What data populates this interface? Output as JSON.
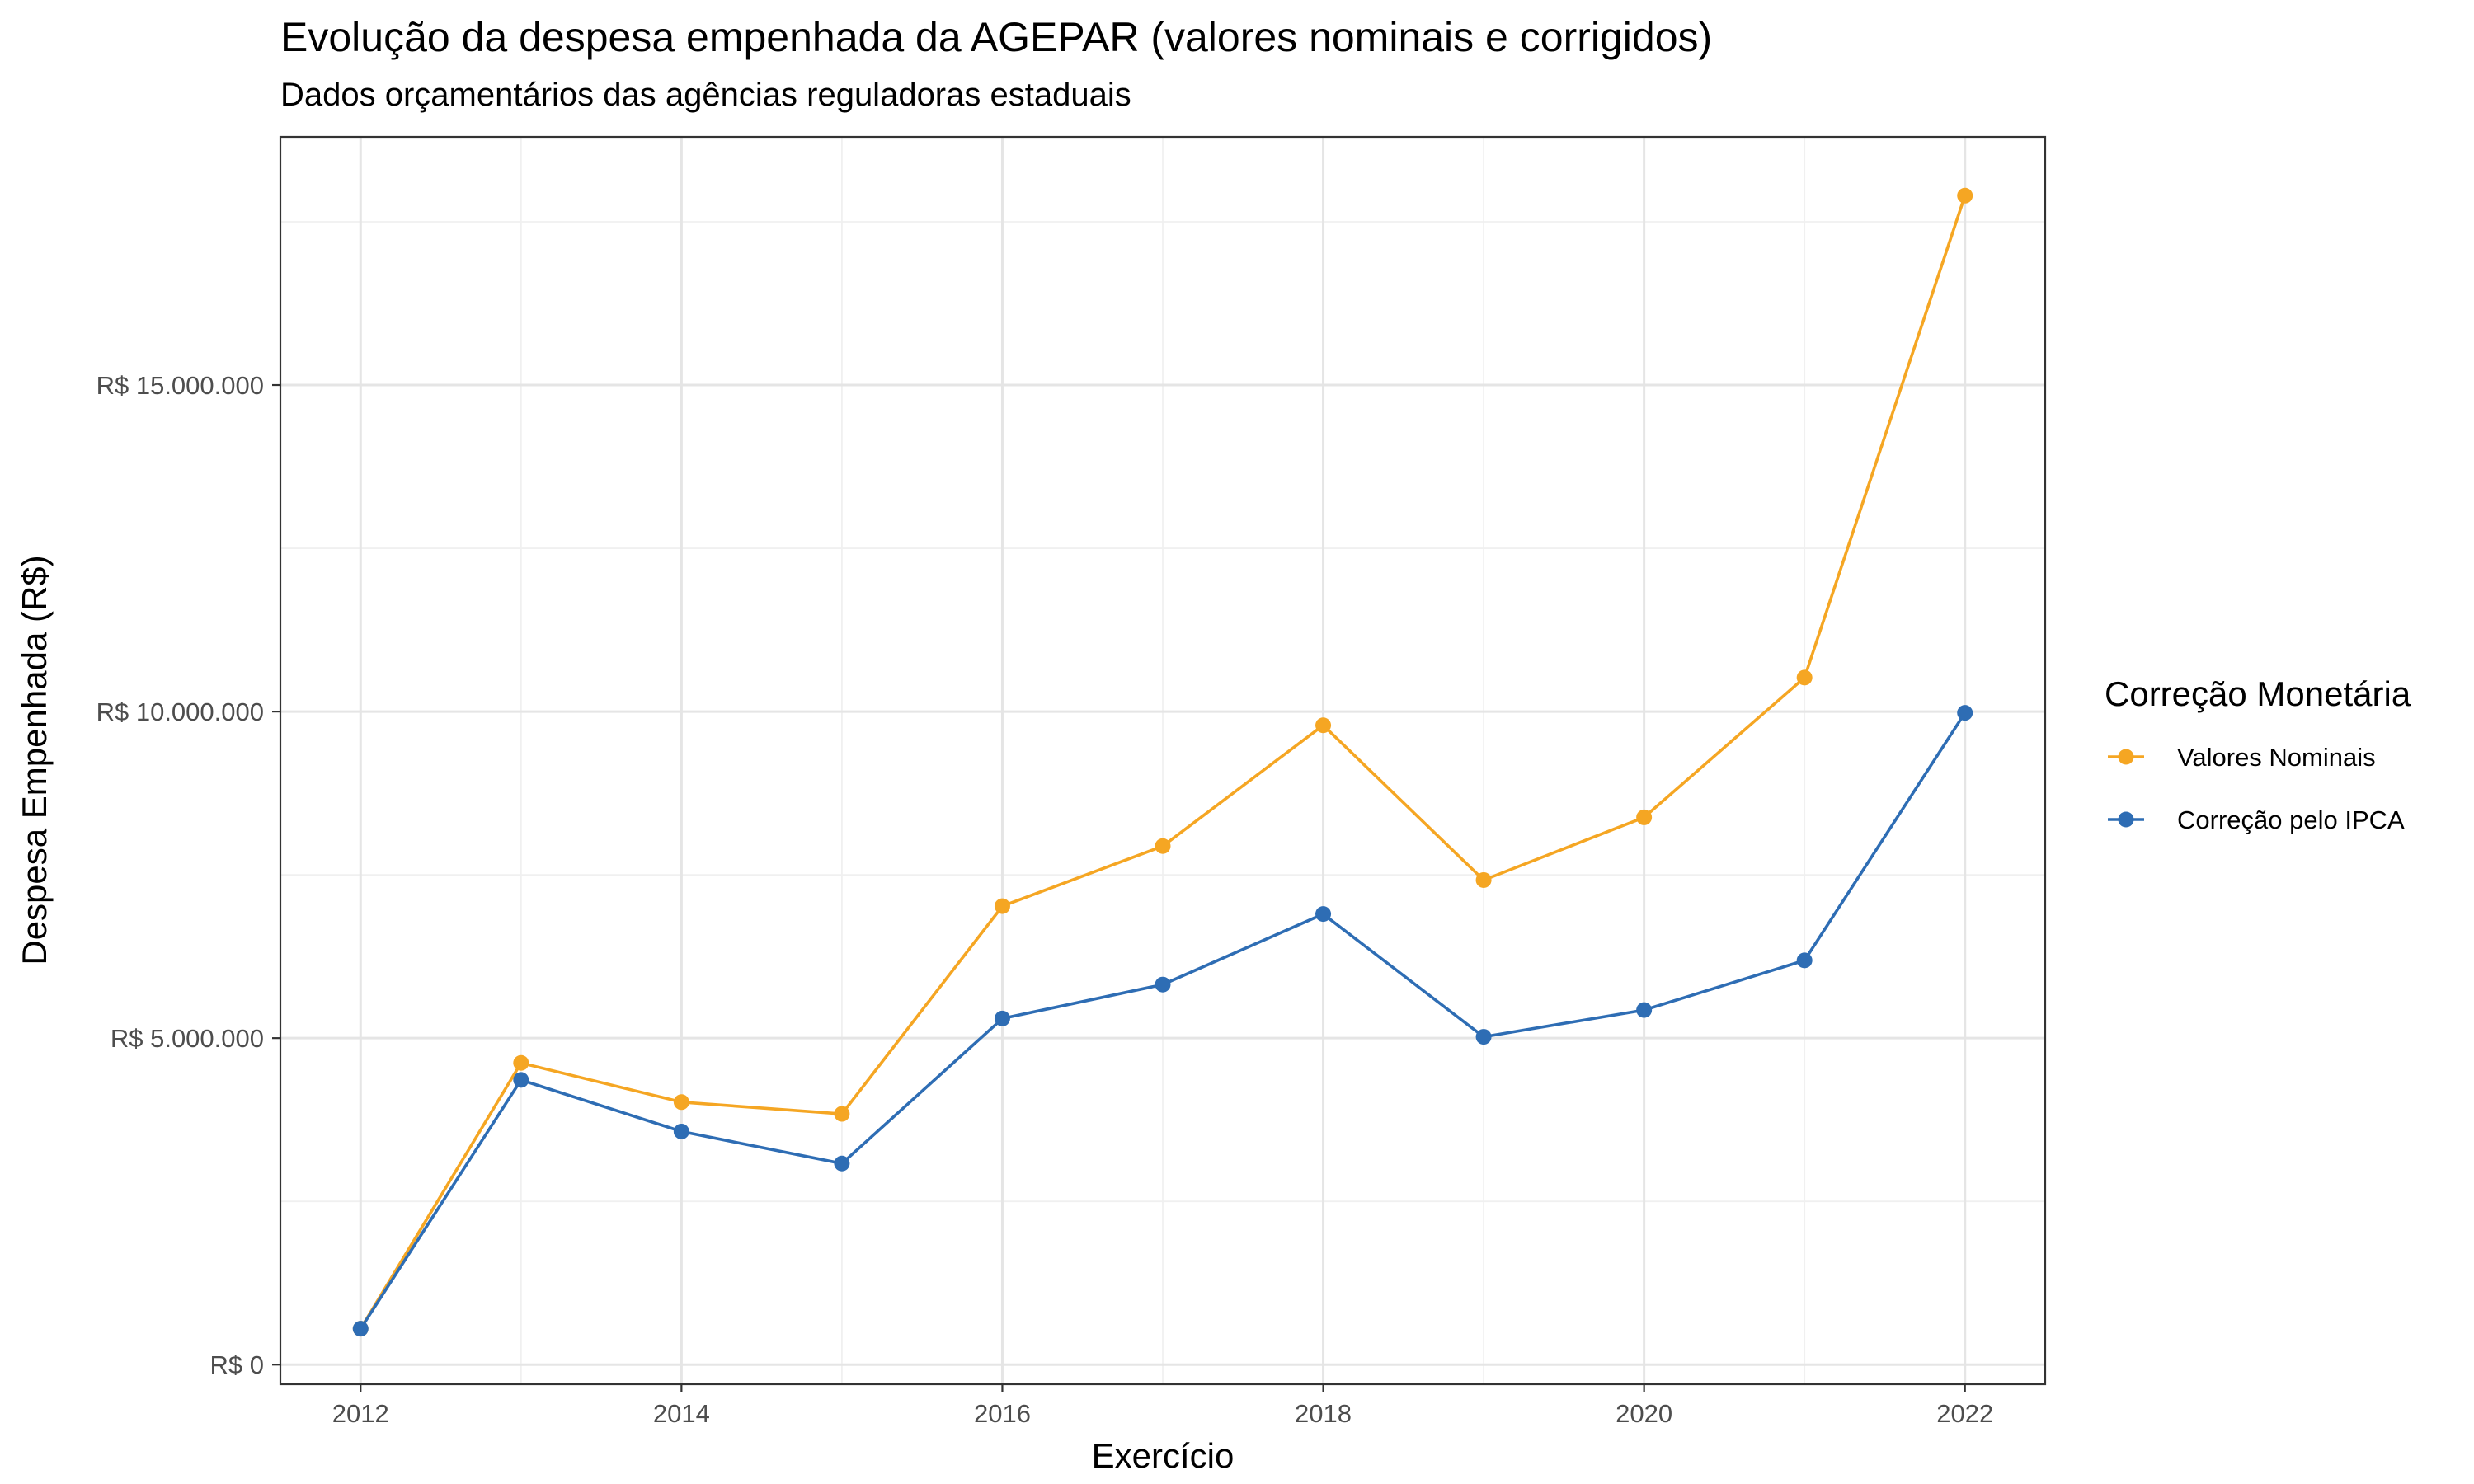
{
  "title": "Evolução da despesa empenhada da AGEPAR (valores nominais e corrigidos)",
  "subtitle": "Dados orçamentários das agências reguladoras estaduais",
  "chart_data": {
    "type": "line",
    "title": "Evolução da despesa empenhada da AGEPAR (valores nominais e corrigidos)",
    "subtitle": "Dados orçamentários das agências reguladoras estaduais",
    "xlabel": "Exercício",
    "ylabel": "Despesa Empenhada (R$)",
    "x": [
      2012,
      2013,
      2014,
      2015,
      2016,
      2017,
      2018,
      2019,
      2020,
      2021,
      2022
    ],
    "xlim": [
      2011.5,
      2022.5
    ],
    "ylim": [
      -300000,
      18800000
    ],
    "x_ticks": [
      2012,
      2014,
      2016,
      2018,
      2020,
      2022
    ],
    "x_tick_labels": [
      "2012",
      "2014",
      "2016",
      "2018",
      "2020",
      "2022"
    ],
    "y_ticks": [
      0,
      5000000,
      10000000,
      15000000
    ],
    "y_tick_labels": [
      "R$ 0",
      "R$ 5.000.000",
      "R$ 10.000.000",
      "R$ 15.000.000"
    ],
    "grid": true,
    "legend": {
      "title": "Correção Monetária",
      "position": "right"
    },
    "series": [
      {
        "name": "Valores Nominais",
        "color": "#F5A623",
        "values": [
          550000,
          4620000,
          4020000,
          3840000,
          7020000,
          7940000,
          9790000,
          7420000,
          8380000,
          10520000,
          17900000
        ]
      },
      {
        "name": "Correção pelo IPCA",
        "color": "#2E6DB4",
        "values": [
          550000,
          4360000,
          3570000,
          3080000,
          5300000,
          5820000,
          6900000,
          5020000,
          5430000,
          6190000,
          9980000
        ]
      }
    ]
  }
}
